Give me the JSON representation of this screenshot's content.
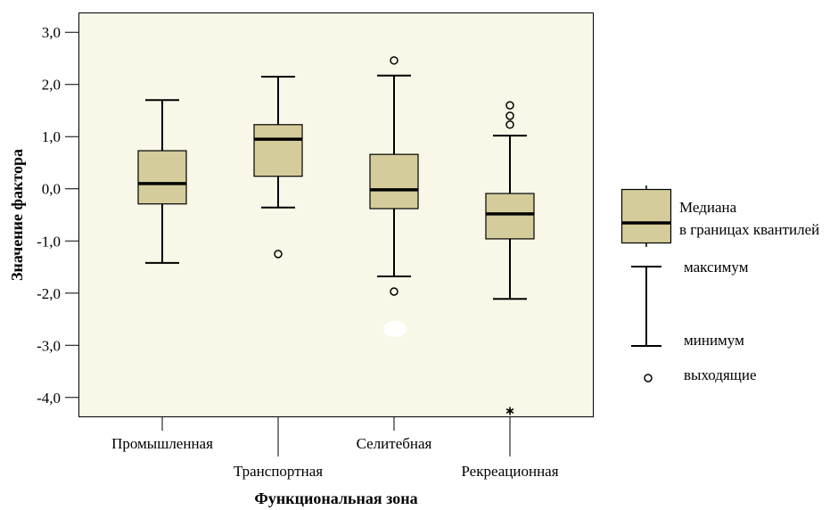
{
  "chart_data": {
    "type": "box",
    "xlabel": "Функциональная зона",
    "ylabel": "Значение фактора",
    "categories": [
      "Промышленная",
      "Транспортная",
      "Селитебная",
      "Рекреационная"
    ],
    "ylim": [
      -4.38,
      3.38
    ],
    "yticks": [
      3,
      2,
      1,
      0,
      -1,
      -2,
      -3,
      -4
    ],
    "ytick_labels": [
      "3,0",
      "2,0",
      "1,0",
      "0,0",
      "-1,0",
      "-2,0",
      "-3,0",
      "-4,0"
    ],
    "boxes": [
      {
        "min": -1.42,
        "q1": -0.29,
        "median": 0.1,
        "q3": 0.73,
        "max": 1.7,
        "outliers": [],
        "extremes": []
      },
      {
        "min": -0.36,
        "q1": 0.24,
        "median": 0.95,
        "q3": 1.23,
        "max": 2.15,
        "outliers": [
          -1.25
        ],
        "extremes": []
      },
      {
        "min": -1.68,
        "q1": -0.38,
        "median": -0.02,
        "q3": 0.66,
        "max": 2.17,
        "outliers": [
          2.46,
          -1.97
        ],
        "extremes": []
      },
      {
        "min": -2.11,
        "q1": -0.96,
        "median": -0.48,
        "q3": -0.09,
        "max": 1.02,
        "outliers": [
          1.6,
          1.4,
          1.23
        ],
        "extremes": [
          -4.26
        ]
      }
    ],
    "grid": false,
    "legend": {
      "placement": "right",
      "box_label": [
        "Медиана",
        "в границах квантилей"
      ],
      "max_label": "максимум",
      "min_label": "минимум",
      "outlier_label": "выходящие"
    }
  },
  "colors": {
    "plot_background": "#F9F7E7",
    "box_fill": "#D4CD9B",
    "stroke": "#000000"
  }
}
